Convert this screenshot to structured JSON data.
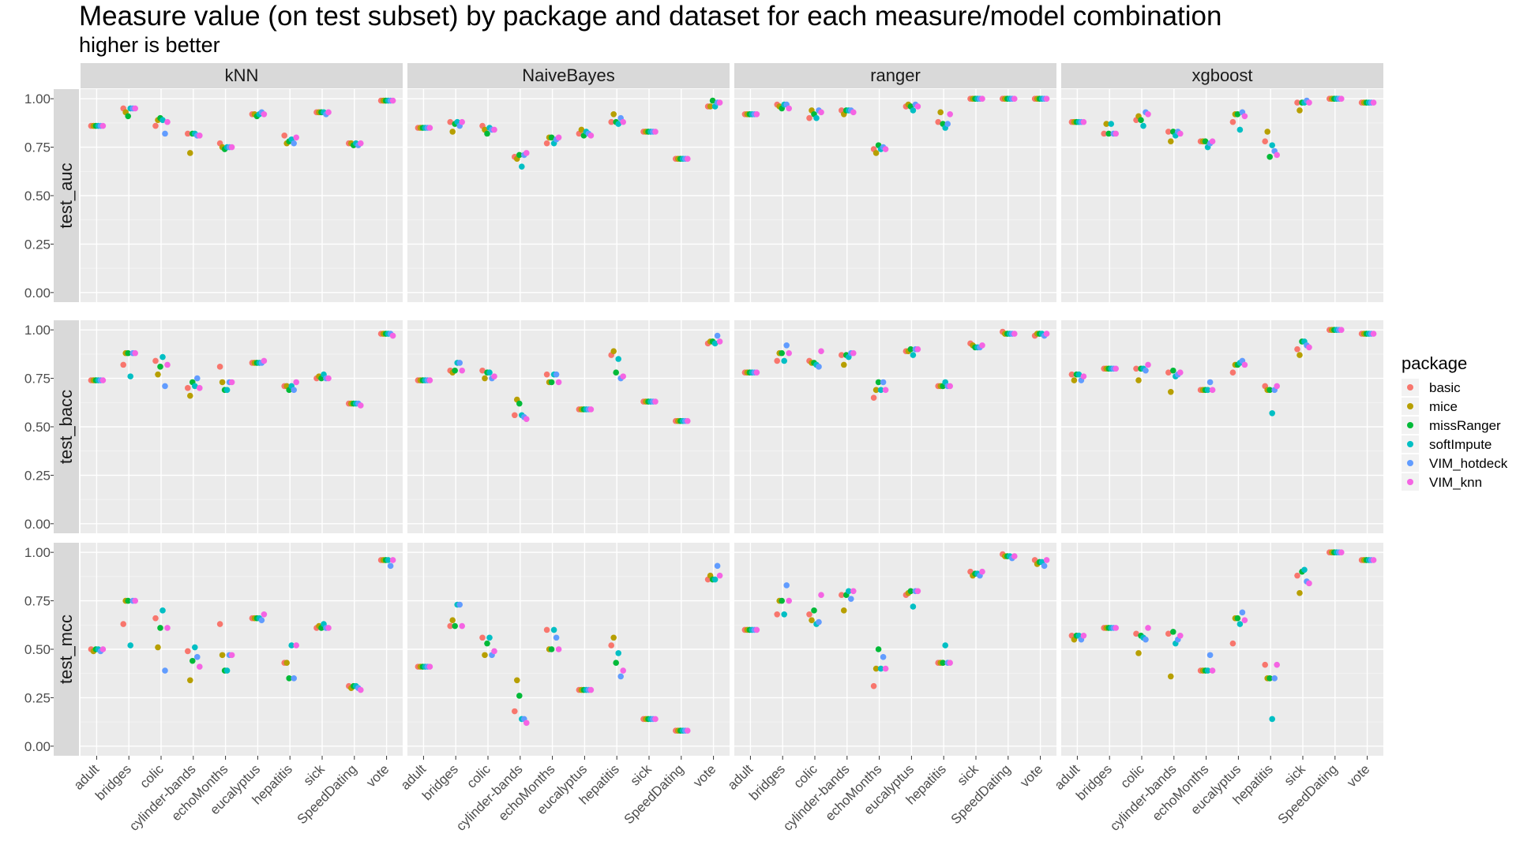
{
  "chart_data": {
    "type": "scatter",
    "title": "Measure value (on test subset) by package and dataset for each measure/model combination",
    "subtitle": "higher is better",
    "facet_columns": [
      "kNN",
      "NaiveBayes",
      "ranger",
      "xgboost"
    ],
    "facet_rows": [
      "test_auc",
      "test_bacc",
      "test_mcc"
    ],
    "categories": [
      "adult",
      "bridges",
      "colic",
      "cylinder-bands",
      "echoMonths",
      "eucalyptus",
      "hepatitis",
      "sick",
      "SpeedDating",
      "vote"
    ],
    "y_ticks": [
      "0.00",
      "0.25",
      "0.50",
      "0.75",
      "1.00"
    ],
    "ylim": [
      0,
      1
    ],
    "grid": true,
    "legend": {
      "title": "package",
      "position": "right",
      "items": [
        {
          "label": "basic",
          "color": "#F8766D"
        },
        {
          "label": "mice",
          "color": "#B79F00"
        },
        {
          "label": "missRanger",
          "color": "#00BA38"
        },
        {
          "label": "softImpute",
          "color": "#00BFC4"
        },
        {
          "label": "VIM_hotdeck",
          "color": "#619CFF"
        },
        {
          "label": "VIM_knn",
          "color": "#F564E3"
        }
      ]
    },
    "series_order": [
      "basic",
      "mice",
      "missRanger",
      "softImpute",
      "VIM_hotdeck",
      "VIM_knn"
    ],
    "values": {
      "test_auc": {
        "kNN": [
          [
            0.86,
            0.86,
            0.86,
            0.86,
            0.86,
            0.86
          ],
          [
            0.95,
            0.93,
            0.91,
            0.95,
            0.95,
            0.95
          ],
          [
            0.86,
            0.89,
            0.9,
            0.89,
            0.82,
            0.88
          ],
          [
            0.82,
            0.72,
            0.82,
            0.82,
            0.81,
            0.81
          ],
          [
            0.77,
            0.75,
            0.74,
            0.75,
            0.75,
            0.75
          ],
          [
            0.92,
            0.92,
            0.91,
            0.92,
            0.93,
            0.92
          ],
          [
            0.81,
            0.77,
            0.78,
            0.79,
            0.77,
            0.8
          ],
          [
            0.93,
            0.93,
            0.93,
            0.93,
            0.92,
            0.93
          ],
          [
            0.77,
            0.77,
            0.76,
            0.77,
            0.76,
            0.77
          ],
          [
            0.99,
            0.99,
            0.99,
            0.99,
            0.99,
            0.99
          ]
        ],
        "NaiveBayes": [
          [
            0.85,
            0.85,
            0.85,
            0.85,
            0.85,
            0.85
          ],
          [
            0.88,
            0.83,
            0.87,
            0.88,
            0.86,
            0.88
          ],
          [
            0.86,
            0.84,
            0.82,
            0.85,
            0.84,
            0.84
          ],
          [
            0.7,
            0.69,
            0.71,
            0.65,
            0.71,
            0.72
          ],
          [
            0.77,
            0.8,
            0.8,
            0.77,
            0.79,
            0.8
          ],
          [
            0.82,
            0.84,
            0.81,
            0.83,
            0.82,
            0.81
          ],
          [
            0.88,
            0.92,
            0.88,
            0.87,
            0.9,
            0.88
          ],
          [
            0.83,
            0.83,
            0.83,
            0.83,
            0.83,
            0.83
          ],
          [
            0.69,
            0.69,
            0.69,
            0.69,
            0.69,
            0.69
          ],
          [
            0.96,
            0.96,
            0.99,
            0.96,
            0.98,
            0.98
          ]
        ],
        "ranger": [
          [
            0.92,
            0.92,
            0.92,
            0.92,
            0.92,
            0.92
          ],
          [
            0.97,
            0.96,
            0.95,
            0.97,
            0.97,
            0.95
          ],
          [
            0.9,
            0.94,
            0.92,
            0.9,
            0.94,
            0.93
          ],
          [
            0.94,
            0.92,
            0.94,
            0.94,
            0.94,
            0.93
          ],
          [
            0.74,
            0.72,
            0.76,
            0.74,
            0.75,
            0.74
          ],
          [
            0.96,
            0.97,
            0.96,
            0.94,
            0.97,
            0.96
          ],
          [
            0.88,
            0.93,
            0.87,
            0.85,
            0.87,
            0.92
          ],
          [
            1.0,
            1.0,
            1.0,
            1.0,
            1.0,
            1.0
          ],
          [
            1.0,
            1.0,
            1.0,
            1.0,
            1.0,
            1.0
          ],
          [
            1.0,
            1.0,
            1.0,
            1.0,
            1.0,
            1.0
          ]
        ],
        "xgboost": [
          [
            0.88,
            0.88,
            0.88,
            0.88,
            0.88,
            0.88
          ],
          [
            0.82,
            0.87,
            0.82,
            0.87,
            0.82,
            0.82
          ],
          [
            0.89,
            0.91,
            0.89,
            0.86,
            0.93,
            0.92
          ],
          [
            0.83,
            0.78,
            0.83,
            0.81,
            0.83,
            0.82
          ],
          [
            0.78,
            0.78,
            0.78,
            0.75,
            0.77,
            0.78
          ],
          [
            0.88,
            0.92,
            0.92,
            0.84,
            0.93,
            0.91
          ],
          [
            0.78,
            0.83,
            0.7,
            0.76,
            0.73,
            0.71
          ],
          [
            0.98,
            0.94,
            0.98,
            0.98,
            0.99,
            0.98
          ],
          [
            1.0,
            1.0,
            1.0,
            1.0,
            1.0,
            1.0
          ],
          [
            0.98,
            0.98,
            0.98,
            0.98,
            0.98,
            0.98
          ]
        ]
      },
      "test_bacc": {
        "kNN": [
          [
            0.74,
            0.74,
            0.74,
            0.74,
            0.74,
            0.74
          ],
          [
            0.82,
            0.88,
            0.88,
            0.76,
            0.88,
            0.88
          ],
          [
            0.84,
            0.77,
            0.81,
            0.86,
            0.71,
            0.82
          ],
          [
            0.7,
            0.66,
            0.73,
            0.71,
            0.75,
            0.7
          ],
          [
            0.81,
            0.73,
            0.69,
            0.69,
            0.73,
            0.73
          ],
          [
            0.83,
            0.83,
            0.83,
            0.83,
            0.83,
            0.84
          ],
          [
            0.71,
            0.71,
            0.69,
            0.71,
            0.69,
            0.73
          ],
          [
            0.75,
            0.76,
            0.75,
            0.77,
            0.75,
            0.75
          ],
          [
            0.62,
            0.62,
            0.62,
            0.62,
            0.62,
            0.61
          ],
          [
            0.98,
            0.98,
            0.98,
            0.98,
            0.98,
            0.97
          ]
        ],
        "NaiveBayes": [
          [
            0.74,
            0.74,
            0.74,
            0.74,
            0.74,
            0.74
          ],
          [
            0.79,
            0.78,
            0.79,
            0.83,
            0.83,
            0.79
          ],
          [
            0.79,
            0.75,
            0.78,
            0.78,
            0.75,
            0.76
          ],
          [
            0.56,
            0.64,
            0.62,
            0.56,
            0.55,
            0.54
          ],
          [
            0.77,
            0.73,
            0.73,
            0.77,
            0.77,
            0.73
          ],
          [
            0.59,
            0.59,
            0.59,
            0.59,
            0.59,
            0.59
          ],
          [
            0.87,
            0.89,
            0.78,
            0.85,
            0.75,
            0.76
          ],
          [
            0.63,
            0.63,
            0.63,
            0.63,
            0.63,
            0.63
          ],
          [
            0.53,
            0.53,
            0.53,
            0.53,
            0.53,
            0.53
          ],
          [
            0.93,
            0.94,
            0.94,
            0.93,
            0.97,
            0.94
          ]
        ],
        "ranger": [
          [
            0.78,
            0.78,
            0.78,
            0.78,
            0.78,
            0.78
          ],
          [
            0.84,
            0.88,
            0.88,
            0.84,
            0.92,
            0.88
          ],
          [
            0.84,
            0.83,
            0.83,
            0.82,
            0.81,
            0.89
          ],
          [
            0.87,
            0.82,
            0.87,
            0.86,
            0.88,
            0.88
          ],
          [
            0.65,
            0.69,
            0.73,
            0.69,
            0.73,
            0.69
          ],
          [
            0.89,
            0.89,
            0.9,
            0.87,
            0.9,
            0.9
          ],
          [
            0.71,
            0.71,
            0.71,
            0.73,
            0.71,
            0.71
          ],
          [
            0.93,
            0.92,
            0.91,
            0.91,
            0.91,
            0.92
          ],
          [
            0.99,
            0.98,
            0.98,
            0.98,
            0.98,
            0.98
          ],
          [
            0.97,
            0.98,
            0.98,
            0.98,
            0.97,
            0.98
          ]
        ],
        "xgboost": [
          [
            0.77,
            0.74,
            0.77,
            0.77,
            0.74,
            0.76
          ],
          [
            0.8,
            0.8,
            0.8,
            0.8,
            0.8,
            0.8
          ],
          [
            0.8,
            0.74,
            0.8,
            0.8,
            0.79,
            0.82
          ],
          [
            0.78,
            0.68,
            0.79,
            0.76,
            0.77,
            0.78
          ],
          [
            0.69,
            0.69,
            0.69,
            0.69,
            0.73,
            0.69
          ],
          [
            0.78,
            0.82,
            0.82,
            0.83,
            0.84,
            0.82
          ],
          [
            0.71,
            0.69,
            0.69,
            0.57,
            0.69,
            0.71
          ],
          [
            0.9,
            0.87,
            0.94,
            0.94,
            0.92,
            0.91
          ],
          [
            1.0,
            1.0,
            1.0,
            1.0,
            1.0,
            1.0
          ],
          [
            0.98,
            0.98,
            0.98,
            0.98,
            0.98,
            0.98
          ]
        ]
      },
      "test_mcc": {
        "kNN": [
          [
            0.5,
            0.49,
            0.5,
            0.5,
            0.49,
            0.5
          ],
          [
            0.63,
            0.75,
            0.75,
            0.52,
            0.75,
            0.75
          ],
          [
            0.66,
            0.51,
            0.61,
            0.7,
            0.39,
            0.61
          ],
          [
            0.49,
            0.34,
            0.44,
            0.51,
            0.46,
            0.41
          ],
          [
            0.63,
            0.47,
            0.39,
            0.39,
            0.47,
            0.47
          ],
          [
            0.66,
            0.66,
            0.66,
            0.66,
            0.65,
            0.68
          ],
          [
            0.43,
            0.43,
            0.35,
            0.52,
            0.35,
            0.52
          ],
          [
            0.61,
            0.62,
            0.61,
            0.63,
            0.61,
            0.61
          ],
          [
            0.31,
            0.3,
            0.31,
            0.31,
            0.3,
            0.29
          ],
          [
            0.96,
            0.96,
            0.96,
            0.96,
            0.93,
            0.96
          ]
        ],
        "NaiveBayes": [
          [
            0.41,
            0.41,
            0.41,
            0.41,
            0.41,
            0.41
          ],
          [
            0.62,
            0.65,
            0.62,
            0.73,
            0.73,
            0.62
          ],
          [
            0.56,
            0.47,
            0.53,
            0.56,
            0.47,
            0.49
          ],
          [
            0.18,
            0.34,
            0.26,
            0.14,
            0.14,
            0.12
          ],
          [
            0.6,
            0.5,
            0.5,
            0.6,
            0.56,
            0.5
          ],
          [
            0.29,
            0.29,
            0.29,
            0.29,
            0.29,
            0.29
          ],
          [
            0.52,
            0.56,
            0.43,
            0.48,
            0.36,
            0.39
          ],
          [
            0.14,
            0.14,
            0.14,
            0.14,
            0.14,
            0.14
          ],
          [
            0.08,
            0.08,
            0.08,
            0.08,
            0.08,
            0.08
          ],
          [
            0.86,
            0.88,
            0.86,
            0.86,
            0.93,
            0.88
          ]
        ],
        "ranger": [
          [
            0.6,
            0.6,
            0.6,
            0.6,
            0.6,
            0.6
          ],
          [
            0.68,
            0.75,
            0.75,
            0.68,
            0.83,
            0.75
          ],
          [
            0.68,
            0.65,
            0.7,
            0.63,
            0.64,
            0.78
          ],
          [
            0.78,
            0.7,
            0.78,
            0.8,
            0.76,
            0.8
          ],
          [
            0.31,
            0.4,
            0.5,
            0.4,
            0.46,
            0.4
          ],
          [
            0.78,
            0.79,
            0.8,
            0.72,
            0.8,
            0.8
          ],
          [
            0.43,
            0.43,
            0.43,
            0.52,
            0.43,
            0.43
          ],
          [
            0.9,
            0.88,
            0.89,
            0.89,
            0.88,
            0.9
          ],
          [
            0.99,
            0.98,
            0.98,
            0.98,
            0.97,
            0.98
          ],
          [
            0.96,
            0.94,
            0.95,
            0.95,
            0.93,
            0.96
          ]
        ],
        "xgboost": [
          [
            0.57,
            0.55,
            0.57,
            0.57,
            0.55,
            0.57
          ],
          [
            0.61,
            0.61,
            0.61,
            0.61,
            0.61,
            0.61
          ],
          [
            0.58,
            0.48,
            0.57,
            0.56,
            0.55,
            0.61
          ],
          [
            0.58,
            0.36,
            0.59,
            0.53,
            0.55,
            0.57
          ],
          [
            0.39,
            0.39,
            0.39,
            0.39,
            0.47,
            0.39
          ],
          [
            0.53,
            0.66,
            0.66,
            0.63,
            0.69,
            0.65
          ],
          [
            0.42,
            0.35,
            0.35,
            0.14,
            0.35,
            0.42
          ],
          [
            0.88,
            0.79,
            0.9,
            0.91,
            0.85,
            0.84
          ],
          [
            1.0,
            1.0,
            1.0,
            1.0,
            1.0,
            1.0
          ],
          [
            0.96,
            0.96,
            0.96,
            0.96,
            0.96,
            0.96
          ]
        ]
      }
    }
  }
}
